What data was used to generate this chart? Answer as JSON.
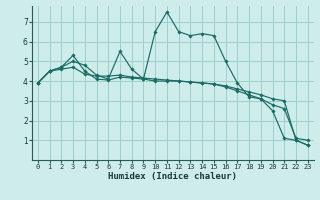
{
  "xlabel": "Humidex (Indice chaleur)",
  "background_color": "#ceecea",
  "grid_color": "#9ecfcc",
  "line_color": "#1a6b65",
  "marker_color": "#1a6b65",
  "xlim": [
    -0.5,
    23.5
  ],
  "ylim": [
    0,
    7.8
  ],
  "yticks": [
    1,
    2,
    3,
    4,
    5,
    6,
    7
  ],
  "xticks": [
    0,
    1,
    2,
    3,
    4,
    5,
    6,
    7,
    8,
    9,
    10,
    11,
    12,
    13,
    14,
    15,
    16,
    17,
    18,
    19,
    20,
    21,
    22,
    23
  ],
  "series1": [
    3.9,
    4.5,
    4.7,
    5.0,
    4.8,
    4.3,
    4.1,
    5.5,
    4.6,
    4.1,
    6.5,
    7.5,
    6.5,
    6.3,
    6.4,
    6.3,
    5.0,
    3.9,
    3.2,
    3.1,
    2.5,
    1.1,
    1.0,
    0.75
  ],
  "series2": [
    3.9,
    4.5,
    4.7,
    5.3,
    4.5,
    4.1,
    4.05,
    4.2,
    4.15,
    4.1,
    4.0,
    4.0,
    4.0,
    3.95,
    3.9,
    3.85,
    3.7,
    3.5,
    3.3,
    3.1,
    2.8,
    2.6,
    1.1,
    1.0
  ],
  "series3": [
    3.9,
    4.5,
    4.6,
    4.7,
    4.35,
    4.25,
    4.25,
    4.3,
    4.2,
    4.15,
    4.1,
    4.05,
    4.0,
    3.95,
    3.9,
    3.85,
    3.75,
    3.6,
    3.45,
    3.3,
    3.1,
    3.0,
    1.0,
    0.75
  ]
}
